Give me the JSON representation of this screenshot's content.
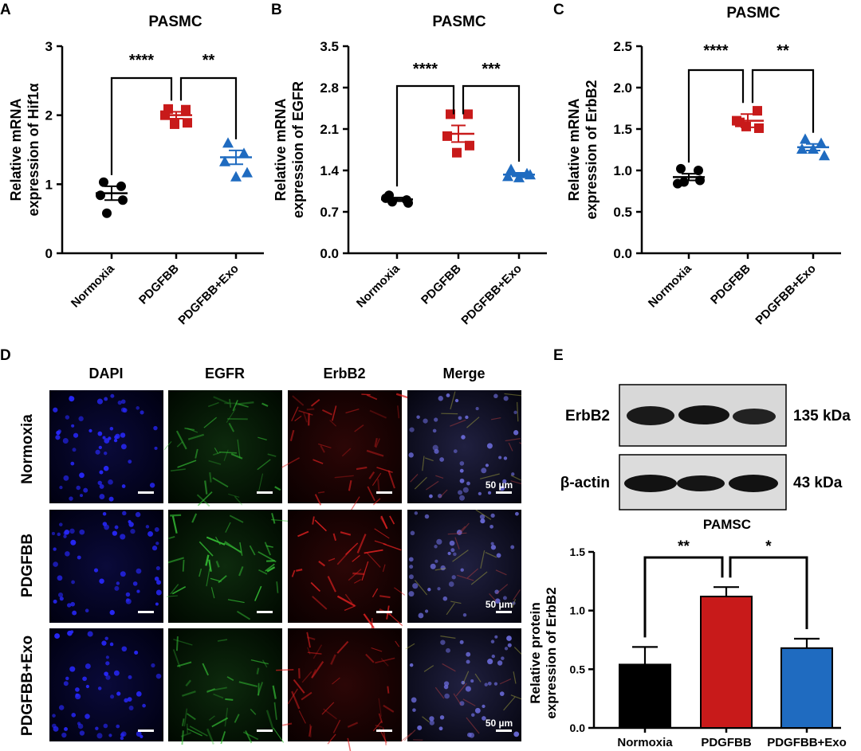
{
  "colors": {
    "normoxia": "#000000",
    "pdgfbb": "#c81a1a",
    "exo": "#1f6bc0",
    "axis": "#000000"
  },
  "panel_letters": {
    "a": "A",
    "b": "B",
    "c": "C",
    "d": "D",
    "e": "E"
  },
  "chart_data": [
    {
      "panel": "A",
      "type": "scatter",
      "title": "PASMC",
      "ylabel": "Relative mRNA expression of Hif1α",
      "categories": [
        "Normoxia",
        "PDGFBB",
        "PDGFBB+Exo"
      ],
      "ylim": [
        0,
        3
      ],
      "yticks": [
        "0",
        "1",
        "2",
        "3"
      ],
      "ytick_values": [
        0,
        1,
        2,
        3
      ],
      "series": [
        {
          "points": [
            1.03,
            0.97,
            0.84,
            0.77,
            0.58
          ],
          "mean": 0.87,
          "sem": 0.1
        },
        {
          "points": [
            2.09,
            2.08,
            2.0,
            1.89,
            1.87
          ],
          "mean": 2.0,
          "sem": 0.05
        },
        {
          "points": [
            1.6,
            1.45,
            1.33,
            1.17,
            1.11
          ],
          "mean": 1.39,
          "sem": 0.1
        }
      ],
      "significance": [
        {
          "from": 0,
          "to": 1,
          "label": "****"
        },
        {
          "from": 1,
          "to": 2,
          "label": "**"
        }
      ]
    },
    {
      "panel": "B",
      "type": "scatter",
      "title": "PASMC",
      "ylabel": "Relative mRNA expression of EGFR",
      "categories": [
        "Normoxia",
        "PDGFBB",
        "PDGFBB+Exo"
      ],
      "ylim": [
        0,
        3.5
      ],
      "yticks": [
        "0.0",
        "0.7",
        "1.4",
        "2.1",
        "2.8",
        "3.5"
      ],
      "ytick_values": [
        0,
        0.7,
        1.4,
        2.1,
        2.8,
        3.5
      ],
      "series": [
        {
          "points": [
            0.98,
            0.9,
            0.93,
            0.85,
            0.87
          ],
          "mean": 0.91,
          "sem": 0.03
        },
        {
          "points": [
            2.35,
            2.35,
            1.98,
            1.82,
            1.7
          ],
          "mean": 2.02,
          "sem": 0.14
        },
        {
          "points": [
            1.42,
            1.35,
            1.3,
            1.33,
            1.28
          ],
          "mean": 1.33,
          "sem": 0.03
        }
      ],
      "significance": [
        {
          "from": 0,
          "to": 1,
          "label": "****"
        },
        {
          "from": 1,
          "to": 2,
          "label": "***"
        }
      ]
    },
    {
      "panel": "C",
      "type": "scatter",
      "title": "PASMC",
      "ylabel": "Relative mRNA expression of ErbB2",
      "categories": [
        "Normoxia",
        "PDGFBB",
        "PDGFBB+Exo"
      ],
      "ylim": [
        0,
        2.5
      ],
      "yticks": [
        "0.0",
        "0.5",
        "1.0",
        "1.5",
        "2.0",
        "2.5"
      ],
      "ytick_values": [
        0,
        0.5,
        1.0,
        1.5,
        2.0,
        2.5
      ],
      "series": [
        {
          "points": [
            1.02,
            1.0,
            0.84,
            0.88,
            0.86
          ],
          "mean": 0.92,
          "sem": 0.04
        },
        {
          "points": [
            1.58,
            1.72,
            1.6,
            1.51,
            1.53
          ],
          "mean": 1.6,
          "sem": 0.08
        },
        {
          "points": [
            1.38,
            1.33,
            1.26,
            1.18,
            1.26
          ],
          "mean": 1.28,
          "sem": 0.04
        }
      ],
      "significance": [
        {
          "from": 0,
          "to": 1,
          "label": "****"
        },
        {
          "from": 1,
          "to": 2,
          "label": "**"
        }
      ]
    },
    {
      "panel": "E",
      "type": "bar",
      "title": "PAMSC",
      "ylabel": "Relative protein expression of ErbB2",
      "categories": [
        "Normoxia",
        "PDGFBB",
        "PDGFBB+Exo"
      ],
      "ylim": [
        0,
        1.5
      ],
      "yticks": [
        "0.0",
        "0.5",
        "1.0",
        "1.5"
      ],
      "ytick_values": [
        0,
        0.5,
        1.0,
        1.5
      ],
      "values": [
        0.54,
        1.12,
        0.68
      ],
      "errors": [
        0.15,
        0.08,
        0.08
      ],
      "significance": [
        {
          "from": 0,
          "to": 1,
          "label": "**"
        },
        {
          "from": 1,
          "to": 2,
          "label": "*"
        }
      ]
    }
  ],
  "panel_d": {
    "columns": [
      "DAPI",
      "EGFR",
      "ErbB2",
      "Merge"
    ],
    "rows": [
      "Normoxia",
      "PDGFBB",
      "PDGFBB+Exo"
    ],
    "scalebar": "50 µm"
  },
  "panel_e_blot": {
    "rows": [
      {
        "protein": "ErbB2",
        "size": "135 kDa"
      },
      {
        "protein": "β-actin",
        "size": "43 kDa"
      }
    ]
  }
}
